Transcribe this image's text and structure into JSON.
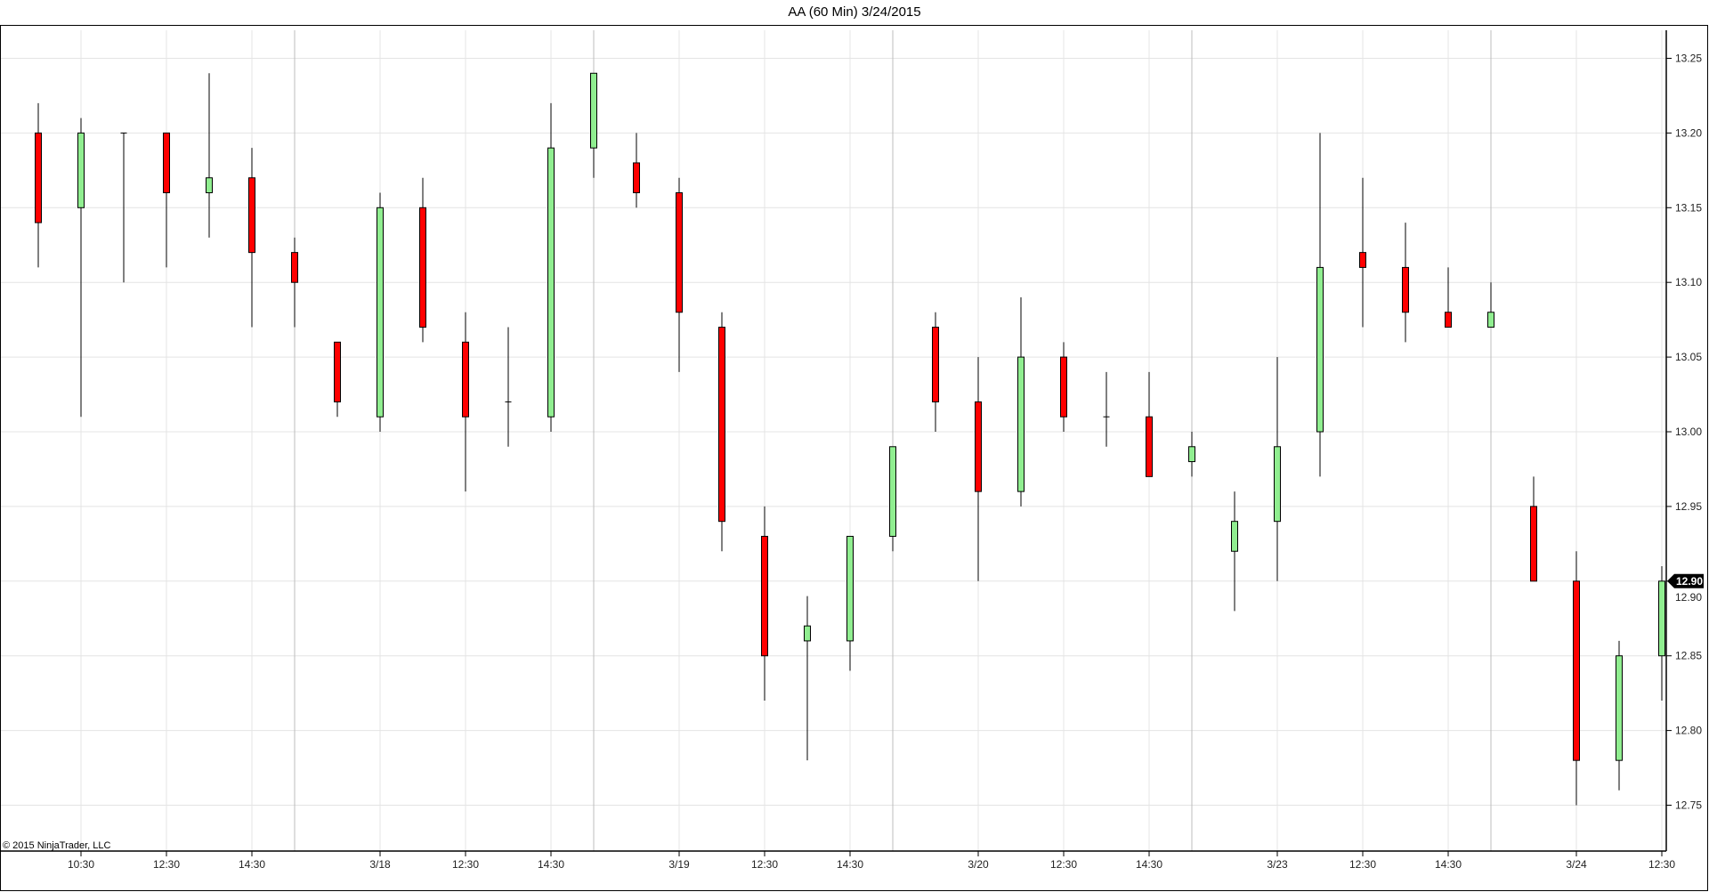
{
  "chart_data": {
    "type": "candlestick",
    "title": "AA (60 Min)  3/24/2015",
    "copyright": "© 2015 NinjaTrader, LLC",
    "ylim": [
      12.73,
      13.27
    ],
    "y_ticks": [
      "13.25",
      "13.20",
      "13.15",
      "13.10",
      "13.05",
      "13.00",
      "12.95",
      "12.90",
      "12.85",
      "12.80",
      "12.75"
    ],
    "last_price": "12.90",
    "grid": true,
    "colors": {
      "up": "#90ee90",
      "down": "#ff0000",
      "outline": "#000000",
      "grid": "#e4e4e4",
      "day_separator": "#bdbdbd"
    },
    "x_ticks": [
      {
        "index": 1,
        "label": "10:30"
      },
      {
        "index": 3,
        "label": "12:30"
      },
      {
        "index": 5,
        "label": "14:30"
      },
      {
        "index": 8,
        "label": "3/18"
      },
      {
        "index": 10,
        "label": "12:30"
      },
      {
        "index": 12,
        "label": "14:30"
      },
      {
        "index": 15,
        "label": "3/19"
      },
      {
        "index": 17,
        "label": "12:30"
      },
      {
        "index": 19,
        "label": "14:30"
      },
      {
        "index": 22,
        "label": "3/20"
      },
      {
        "index": 24,
        "label": "12:30"
      },
      {
        "index": 26,
        "label": "14:30"
      },
      {
        "index": 29,
        "label": "3/23"
      },
      {
        "index": 31,
        "label": "12:30"
      },
      {
        "index": 33,
        "label": "14:30"
      },
      {
        "index": 36,
        "label": "3/24"
      },
      {
        "index": 38,
        "label": "12:30"
      }
    ],
    "day_separators": [
      6,
      13,
      20,
      27,
      34
    ],
    "candles": [
      {
        "o": 13.2,
        "h": 13.22,
        "l": 13.11,
        "c": 13.14
      },
      {
        "o": 13.15,
        "h": 13.21,
        "l": 13.01,
        "c": 13.2
      },
      {
        "o": 13.2,
        "h": 13.2,
        "l": 13.1,
        "c": 13.2
      },
      {
        "o": 13.2,
        "h": 13.2,
        "l": 13.11,
        "c": 13.16
      },
      {
        "o": 13.16,
        "h": 13.24,
        "l": 13.13,
        "c": 13.17
      },
      {
        "o": 13.17,
        "h": 13.19,
        "l": 13.07,
        "c": 13.12
      },
      {
        "o": 13.12,
        "h": 13.13,
        "l": 13.07,
        "c": 13.1
      },
      {
        "o": 13.06,
        "h": 13.06,
        "l": 13.01,
        "c": 13.02
      },
      {
        "o": 13.01,
        "h": 13.16,
        "l": 13.0,
        "c": 13.15
      },
      {
        "o": 13.15,
        "h": 13.17,
        "l": 13.06,
        "c": 13.07
      },
      {
        "o": 13.06,
        "h": 13.08,
        "l": 12.96,
        "c": 13.01
      },
      {
        "o": 13.02,
        "h": 13.07,
        "l": 12.99,
        "c": 13.02
      },
      {
        "o": 13.01,
        "h": 13.22,
        "l": 13.0,
        "c": 13.19
      },
      {
        "o": 13.19,
        "h": 13.24,
        "l": 13.17,
        "c": 13.24
      },
      {
        "o": 13.18,
        "h": 13.2,
        "l": 13.15,
        "c": 13.16
      },
      {
        "o": 13.16,
        "h": 13.17,
        "l": 13.04,
        "c": 13.08
      },
      {
        "o": 13.07,
        "h": 13.08,
        "l": 12.92,
        "c": 12.94
      },
      {
        "o": 12.93,
        "h": 12.95,
        "l": 12.82,
        "c": 12.85
      },
      {
        "o": 12.86,
        "h": 12.89,
        "l": 12.78,
        "c": 12.87
      },
      {
        "o": 12.86,
        "h": 12.93,
        "l": 12.84,
        "c": 12.93
      },
      {
        "o": 12.93,
        "h": 12.99,
        "l": 12.92,
        "c": 12.99
      },
      {
        "o": 13.07,
        "h": 13.08,
        "l": 13.0,
        "c": 13.02
      },
      {
        "o": 13.02,
        "h": 13.05,
        "l": 12.9,
        "c": 12.96
      },
      {
        "o": 12.96,
        "h": 13.09,
        "l": 12.95,
        "c": 13.05
      },
      {
        "o": 13.05,
        "h": 13.06,
        "l": 13.0,
        "c": 13.01
      },
      {
        "o": 13.01,
        "h": 13.04,
        "l": 12.99,
        "c": 13.01
      },
      {
        "o": 13.01,
        "h": 13.04,
        "l": 12.97,
        "c": 12.97
      },
      {
        "o": 12.98,
        "h": 13.0,
        "l": 12.97,
        "c": 12.99
      },
      {
        "o": 12.92,
        "h": 12.96,
        "l": 12.88,
        "c": 12.94
      },
      {
        "o": 12.94,
        "h": 13.05,
        "l": 12.9,
        "c": 12.99
      },
      {
        "o": 13.0,
        "h": 13.2,
        "l": 12.97,
        "c": 13.11
      },
      {
        "o": 13.12,
        "h": 13.17,
        "l": 13.07,
        "c": 13.11
      },
      {
        "o": 13.11,
        "h": 13.14,
        "l": 13.06,
        "c": 13.08
      },
      {
        "o": 13.08,
        "h": 13.11,
        "l": 13.07,
        "c": 13.07
      },
      {
        "o": 13.07,
        "h": 13.1,
        "l": 13.07,
        "c": 13.08
      },
      {
        "o": 12.95,
        "h": 12.97,
        "l": 12.9,
        "c": 12.9
      },
      {
        "o": 12.9,
        "h": 12.92,
        "l": 12.75,
        "c": 12.78
      },
      {
        "o": 12.78,
        "h": 12.86,
        "l": 12.76,
        "c": 12.85
      },
      {
        "o": 12.85,
        "h": 12.91,
        "l": 12.82,
        "c": 12.9
      }
    ]
  }
}
